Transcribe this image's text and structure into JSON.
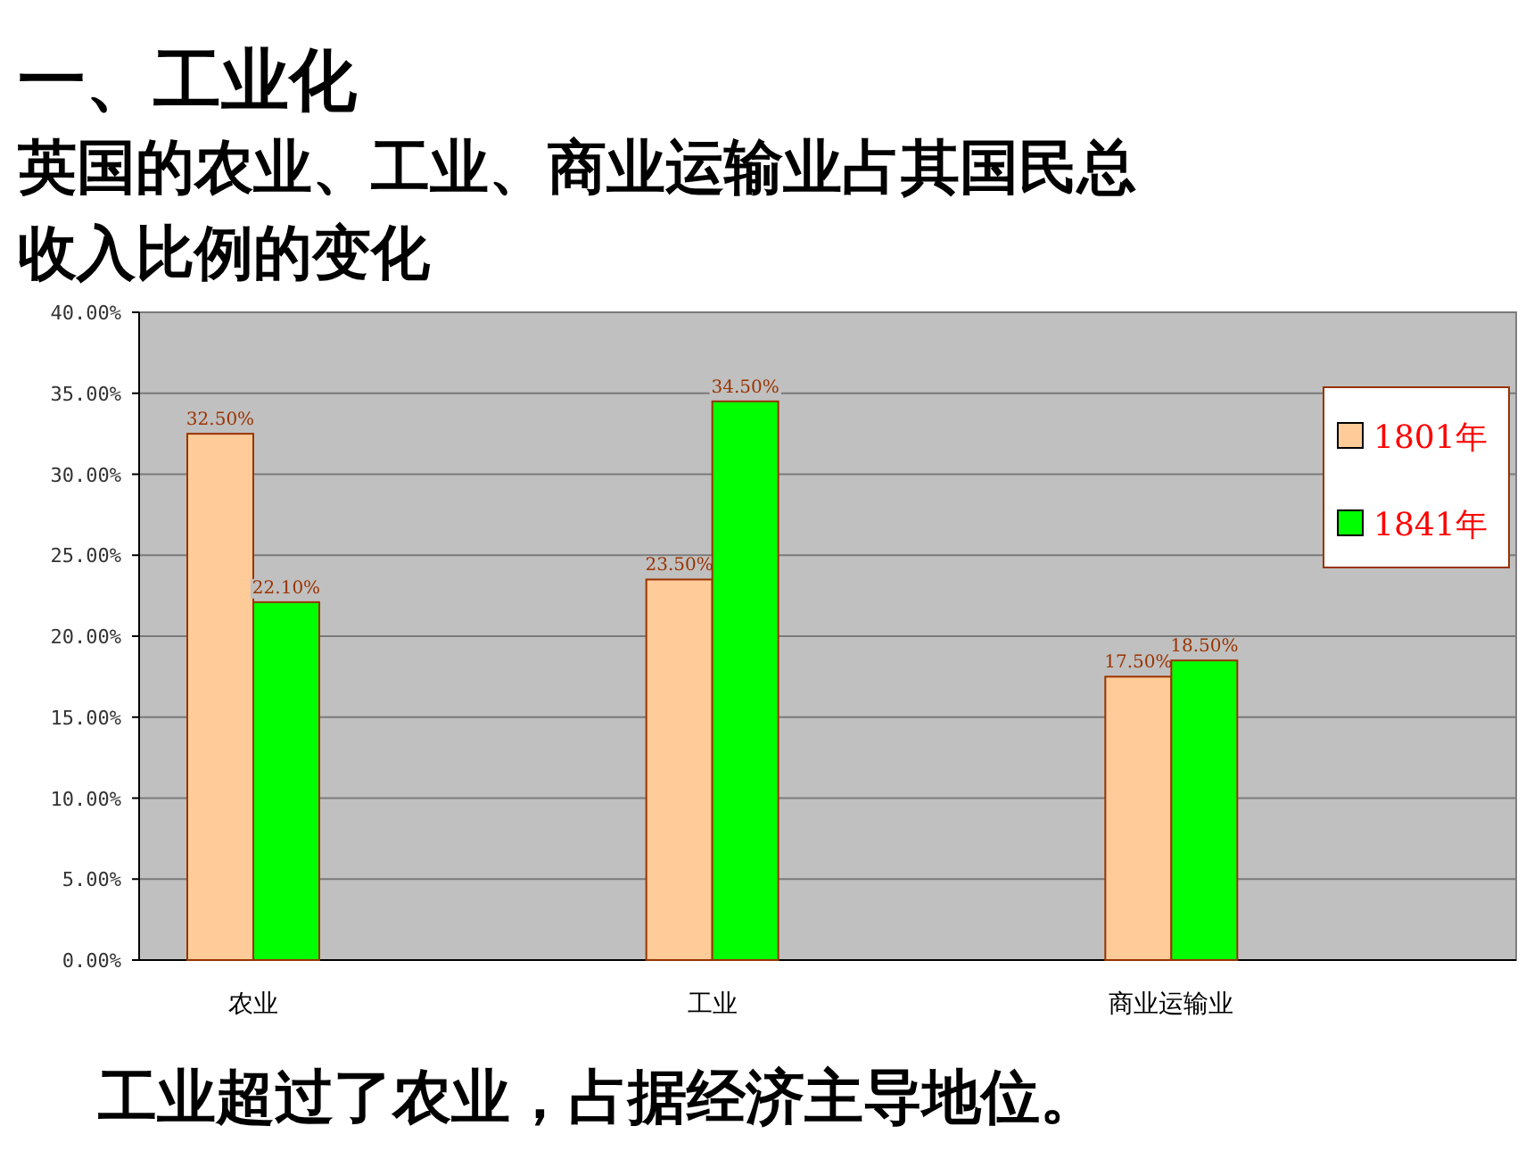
{
  "chart_data": {
    "type": "bar",
    "title": "一、工业化",
    "subtitle": "英国的农业、工业、商业运输业占其国民总收入比例的变化",
    "categories": [
      "农业",
      "工业",
      "商业运输业"
    ],
    "series": [
      {
        "name": "1801年",
        "color": "#ffcc99",
        "values": [
          32.5,
          23.5,
          17.5
        ],
        "value_labels": [
          "32.50%",
          "23.50%",
          "17.50%"
        ]
      },
      {
        "name": "1841年",
        "color": "#00ff00",
        "values": [
          22.1,
          34.5,
          18.5
        ],
        "value_labels": [
          "22.10%",
          "34.50%",
          "18.50%"
        ]
      }
    ],
    "ylim": [
      0,
      40
    ],
    "yticks": [
      {
        "value": 0,
        "label": "0.00%"
      },
      {
        "value": 5,
        "label": "5.00%"
      },
      {
        "value": 10,
        "label": "10.00%"
      },
      {
        "value": 15,
        "label": "15.00%"
      },
      {
        "value": 20,
        "label": "20.00%"
      },
      {
        "value": 25,
        "label": "25.00%"
      },
      {
        "value": 30,
        "label": "30.00%"
      },
      {
        "value": 35,
        "label": "35.00%"
      },
      {
        "value": 40,
        "label": "40.00%"
      }
    ],
    "grid": "y",
    "legend": "right",
    "annotations": [
      "工业超过了农业，占据经济主导地位。"
    ]
  }
}
